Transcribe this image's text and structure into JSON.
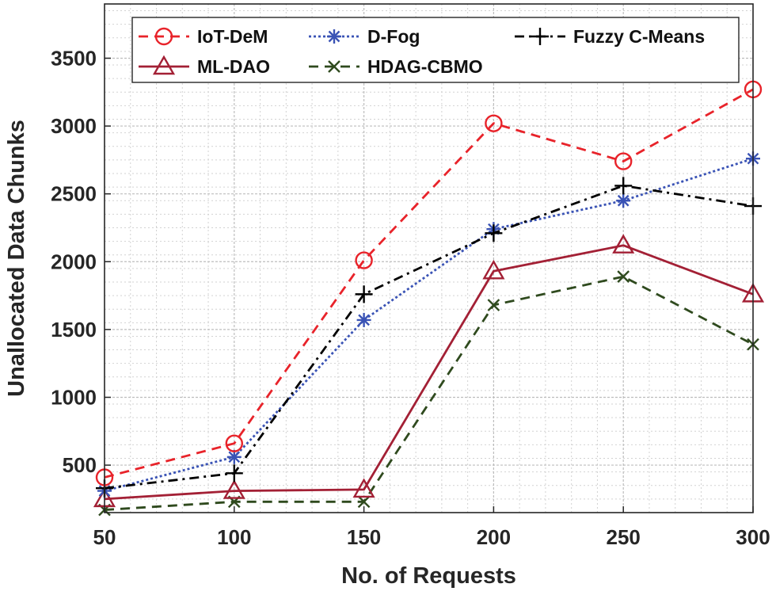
{
  "chart_data": {
    "type": "line",
    "title": "",
    "xlabel": "No. of Requests",
    "ylabel": "Unallocated Data Chunks",
    "x": [
      50,
      100,
      150,
      200,
      250,
      300
    ],
    "xlim": [
      50,
      300
    ],
    "ylim": [
      150,
      3900
    ],
    "xticks": [
      "50",
      "100",
      "150",
      "200",
      "250",
      "300"
    ],
    "yticks": [
      "500",
      "1000",
      "1500",
      "2000",
      "2500",
      "3000",
      "3500"
    ],
    "ytick_values": [
      500,
      1000,
      1500,
      2000,
      2500,
      3000,
      3500
    ],
    "grid": true,
    "minor_grid": true,
    "legend_position": "top",
    "series": [
      {
        "name": "IoT-DeM",
        "values": [
          410,
          660,
          2010,
          3020,
          2740,
          3270
        ],
        "color": "#e8232a",
        "dash": "dashed",
        "marker": "circle"
      },
      {
        "name": "D-Fog",
        "values": [
          310,
          560,
          1570,
          2240,
          2450,
          2760
        ],
        "color": "#3a53b5",
        "dash": "dotted",
        "marker": "asterisk"
      },
      {
        "name": "Fuzzy C-Means",
        "values": [
          330,
          440,
          1760,
          2210,
          2560,
          2410
        ],
        "color": "#000000",
        "dash": "dashdot",
        "marker": "plus"
      },
      {
        "name": "ML-DAO",
        "values": [
          250,
          310,
          320,
          1930,
          2120,
          1760
        ],
        "color": "#a32035",
        "dash": "solid",
        "marker": "triangle"
      },
      {
        "name": "HDAG-CBMO",
        "values": [
          170,
          230,
          230,
          1680,
          1890,
          1390
        ],
        "color": "#2f4a1e",
        "dash": "dashed",
        "marker": "x"
      }
    ]
  }
}
